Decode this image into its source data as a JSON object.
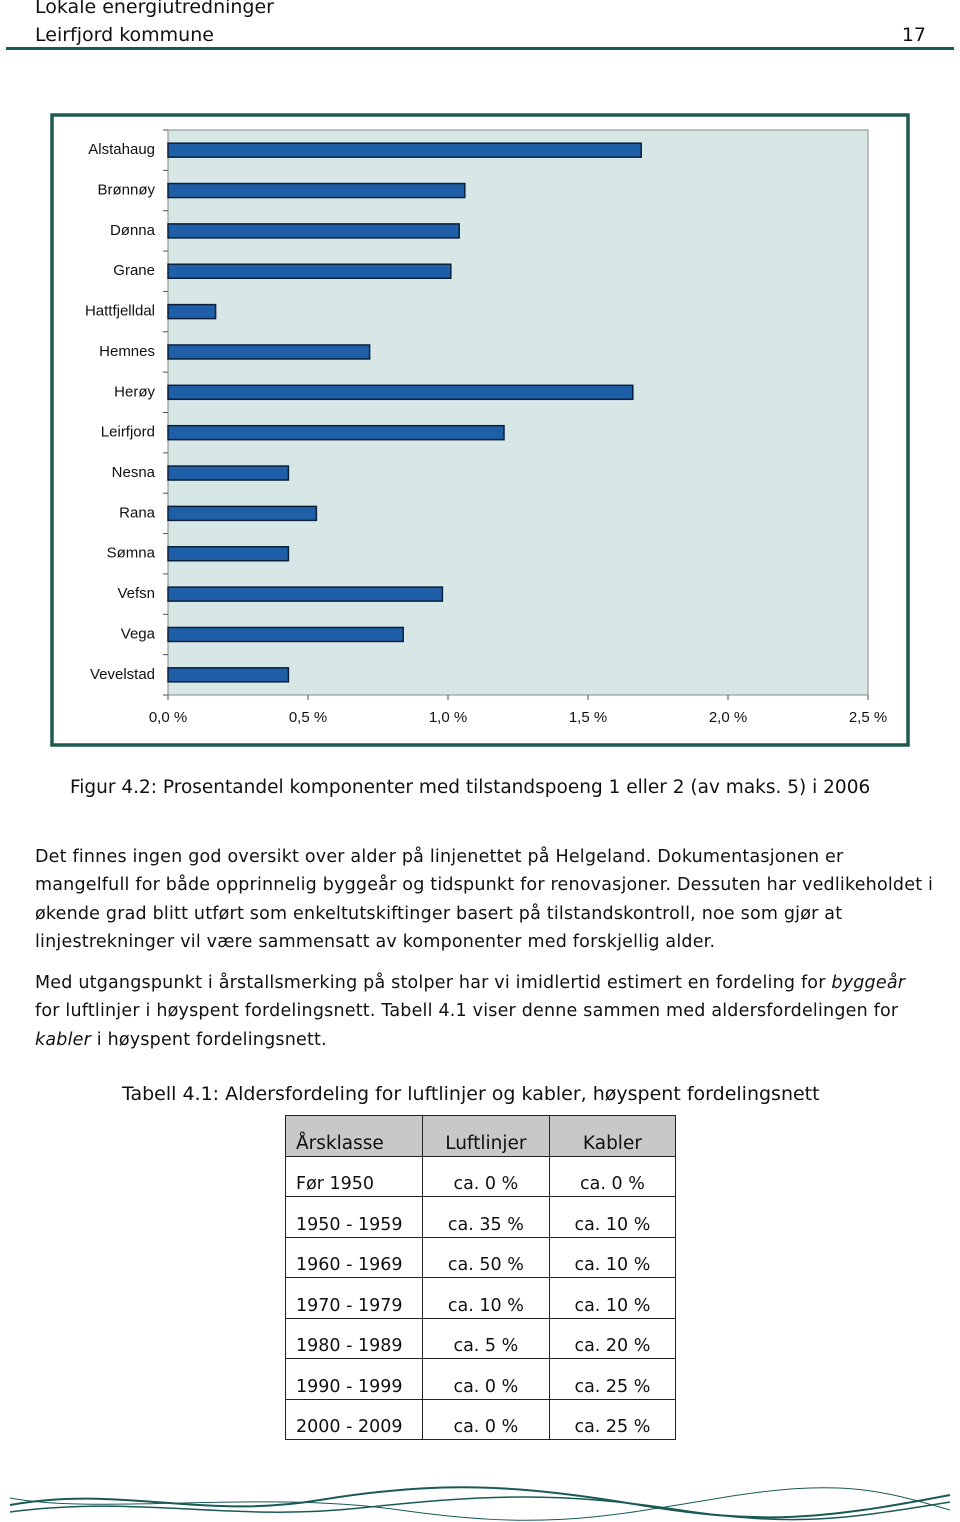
{
  "header": {
    "title": "Lokale energiutredninger",
    "subtitle": "Leirfjord kommune",
    "page_number": "17"
  },
  "chart_data": {
    "type": "hbar",
    "categories": [
      "Alstahaug",
      "Brønnøy",
      "Dønna",
      "Grane",
      "Hattfjelldal",
      "Hemnes",
      "Herøy",
      "Leirfjord",
      "Nesna",
      "Rana",
      "Sømna",
      "Vefsn",
      "Vega",
      "Vevelstad"
    ],
    "values": [
      1.69,
      1.06,
      1.04,
      1.01,
      0.17,
      0.72,
      1.66,
      1.2,
      0.43,
      0.53,
      0.43,
      0.98,
      0.84,
      0.43
    ],
    "color": "#1f5fa8",
    "xlim": [
      0,
      2.5
    ],
    "xticks": [
      {
        "value": 0,
        "label": "0,0 %"
      },
      {
        "value": 0.5,
        "label": "0,5 %"
      },
      {
        "value": 1,
        "label": "1,0 %"
      },
      {
        "value": 1.5,
        "label": "1,5 %"
      },
      {
        "value": 2,
        "label": "2,0 %"
      },
      {
        "value": 2.5,
        "label": "2,5 %"
      }
    ],
    "grid": false
  },
  "caption": "Figur 4.2: Prosentandel komponenter med tilstandspoeng 1 eller 2 (av maks. 5) i 2006",
  "paragraphs": [
    [
      "Det finnes ingen god oversikt over alder på linjenettet på Helgeland. Dokumentasjonen er mangelfull for både opprinnelig byggeår og tidspunkt for renovasjoner. Dessuten har vedlikeholdet i økende grad blitt utført som enkeltutskiftinger basert på tilstandskontroll, noe som gjør at linjestrekninger vil være sammensatt av komponenter med forskjellig alder."
    ],
    [
      "Med utgangspunkt i årstallsmerking på stolper har vi imidlertid estimert en fordeling for ",
      "byggeår",
      " for luftlinjer i høyspent fordelingsnett. Tabell 4.1 viser denne sammen med aldersfordelingen for ",
      "kabler",
      " i høyspent fordelingsnett."
    ]
  ],
  "table": {
    "title": "Tabell 4.1:  Aldersfordeling for luftlinjer og kabler, høyspent fordelingsnett",
    "header": [
      "Årsklasse",
      "Luftlinjer",
      "Kabler"
    ],
    "rows": [
      [
        "Før 1950",
        "ca. 0 %",
        "ca. 0 %"
      ],
      [
        "1950 - 1959",
        "ca. 35 %",
        "ca. 10 %"
      ],
      [
        "1960 - 1969",
        "ca. 50 %",
        "ca. 10 %"
      ],
      [
        "1970 - 1979",
        "ca. 10 %",
        "ca. 10 %"
      ],
      [
        "1980 - 1989",
        "ca. 5 %",
        "ca. 20 %"
      ],
      [
        "1990 - 1999",
        "ca. 0 %",
        "ca. 25 %"
      ],
      [
        "2000 - 2009",
        "ca. 0 %",
        "ca. 25 %"
      ]
    ]
  }
}
